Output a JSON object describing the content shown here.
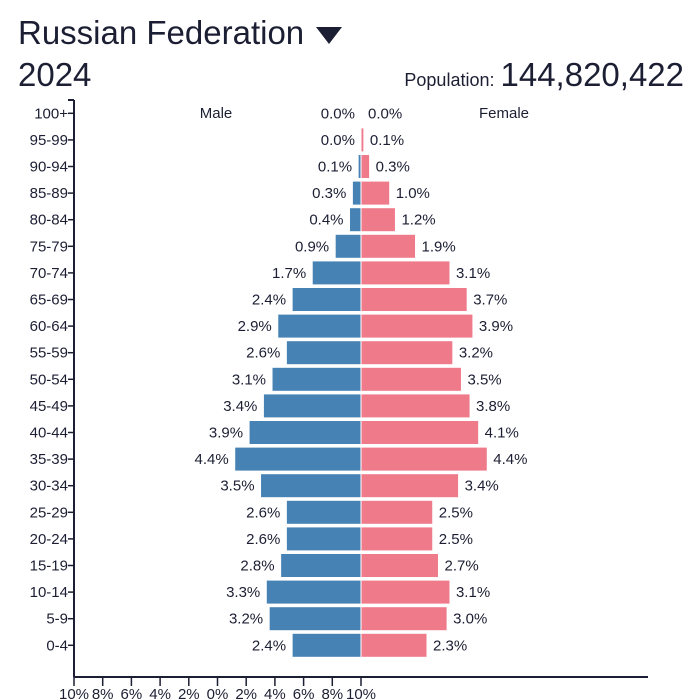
{
  "header": {
    "country": "Russian Federation",
    "year": "2024",
    "population_label": "Population:",
    "population": "144,820,422",
    "dropdown_icon": "triangle-down-icon"
  },
  "chart_data": {
    "type": "bar",
    "orientation": "horizontal-pyramid",
    "categories": [
      "100+",
      "95-99",
      "90-94",
      "85-89",
      "80-84",
      "75-79",
      "70-74",
      "65-69",
      "60-64",
      "55-59",
      "50-54",
      "45-49",
      "40-44",
      "35-39",
      "30-34",
      "25-29",
      "20-24",
      "15-19",
      "10-14",
      "5-9",
      "0-4"
    ],
    "series": [
      {
        "name": "Male",
        "color": "#4682b4",
        "values": [
          0.0,
          0.0,
          0.1,
          0.3,
          0.4,
          0.9,
          1.7,
          2.4,
          2.9,
          2.6,
          3.1,
          3.4,
          3.9,
          4.4,
          3.5,
          2.6,
          2.6,
          2.8,
          3.3,
          3.2,
          2.4
        ]
      },
      {
        "name": "Female",
        "color": "#ef7a8a",
        "values": [
          0.0,
          0.1,
          0.3,
          1.0,
          1.2,
          1.9,
          3.1,
          3.7,
          3.9,
          3.2,
          3.5,
          3.8,
          4.1,
          4.4,
          3.4,
          2.5,
          2.5,
          2.7,
          3.1,
          3.0,
          2.3
        ]
      }
    ],
    "xlim": [
      -10,
      10
    ],
    "xticks": [
      "10%",
      "8%",
      "6%",
      "4%",
      "2%",
      "0%",
      "2%",
      "4%",
      "6%",
      "8%",
      "10%"
    ],
    "xlabel": "",
    "ylabel": ""
  }
}
